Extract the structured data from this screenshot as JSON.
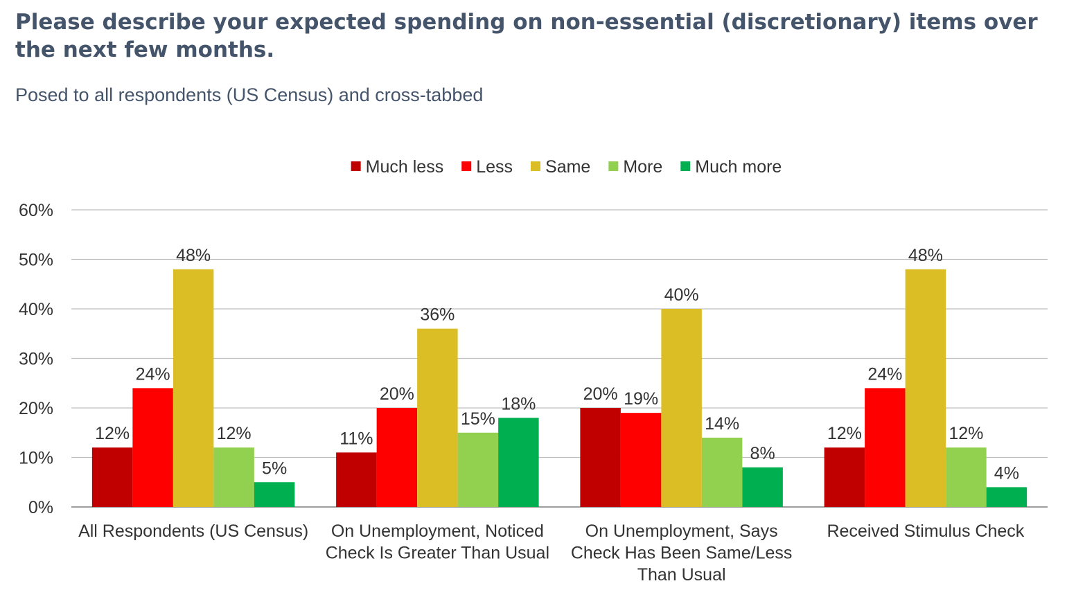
{
  "title": "Please describe your expected spending on non-essential (discretionary) items over the next few months.",
  "subtitle": "Posed to all respondents (US Census) and cross-tabbed",
  "chart_data": {
    "type": "bar",
    "title": "Please describe your expected spending on non-essential (discretionary) items over the next few months.",
    "subtitle": "Posed to all respondents (US Census) and cross-tabbed",
    "categories": [
      [
        "All Respondents (US Census)"
      ],
      [
        "On Unemployment, Noticed",
        "Check Is Greater Than Usual"
      ],
      [
        "On Unemployment, Says",
        "Check Has Been Same/Less",
        "Than Usual"
      ],
      [
        "Received Stimulus Check"
      ]
    ],
    "series": [
      {
        "name": "Much less",
        "color": "#C00000",
        "values": [
          12,
          11,
          20,
          12
        ],
        "labels": [
          "12%",
          "11%",
          "20%",
          "12%"
        ]
      },
      {
        "name": "Less",
        "color": "#FF0000",
        "values": [
          24,
          20,
          19,
          24
        ],
        "labels": [
          "24%",
          "20%",
          "19%",
          "24%"
        ]
      },
      {
        "name": "Same",
        "color": "#DBBD26",
        "values": [
          48,
          36,
          40,
          48
        ],
        "labels": [
          "48%",
          "36%",
          "40%",
          "48%"
        ]
      },
      {
        "name": "More",
        "color": "#92D050",
        "values": [
          12,
          15,
          14,
          12
        ],
        "labels": [
          "12%",
          "15%",
          "14%",
          "12%"
        ]
      },
      {
        "name": "Much more",
        "color": "#00B050",
        "values": [
          5,
          18,
          8,
          4
        ],
        "labels": [
          "5%",
          "18%",
          "8%",
          "4%"
        ]
      }
    ],
    "ylim": [
      0,
      60
    ],
    "yticks": [
      "0%",
      "10%",
      "20%",
      "30%",
      "40%",
      "50%",
      "60%"
    ],
    "grid": true,
    "legend_position": "top-center"
  }
}
